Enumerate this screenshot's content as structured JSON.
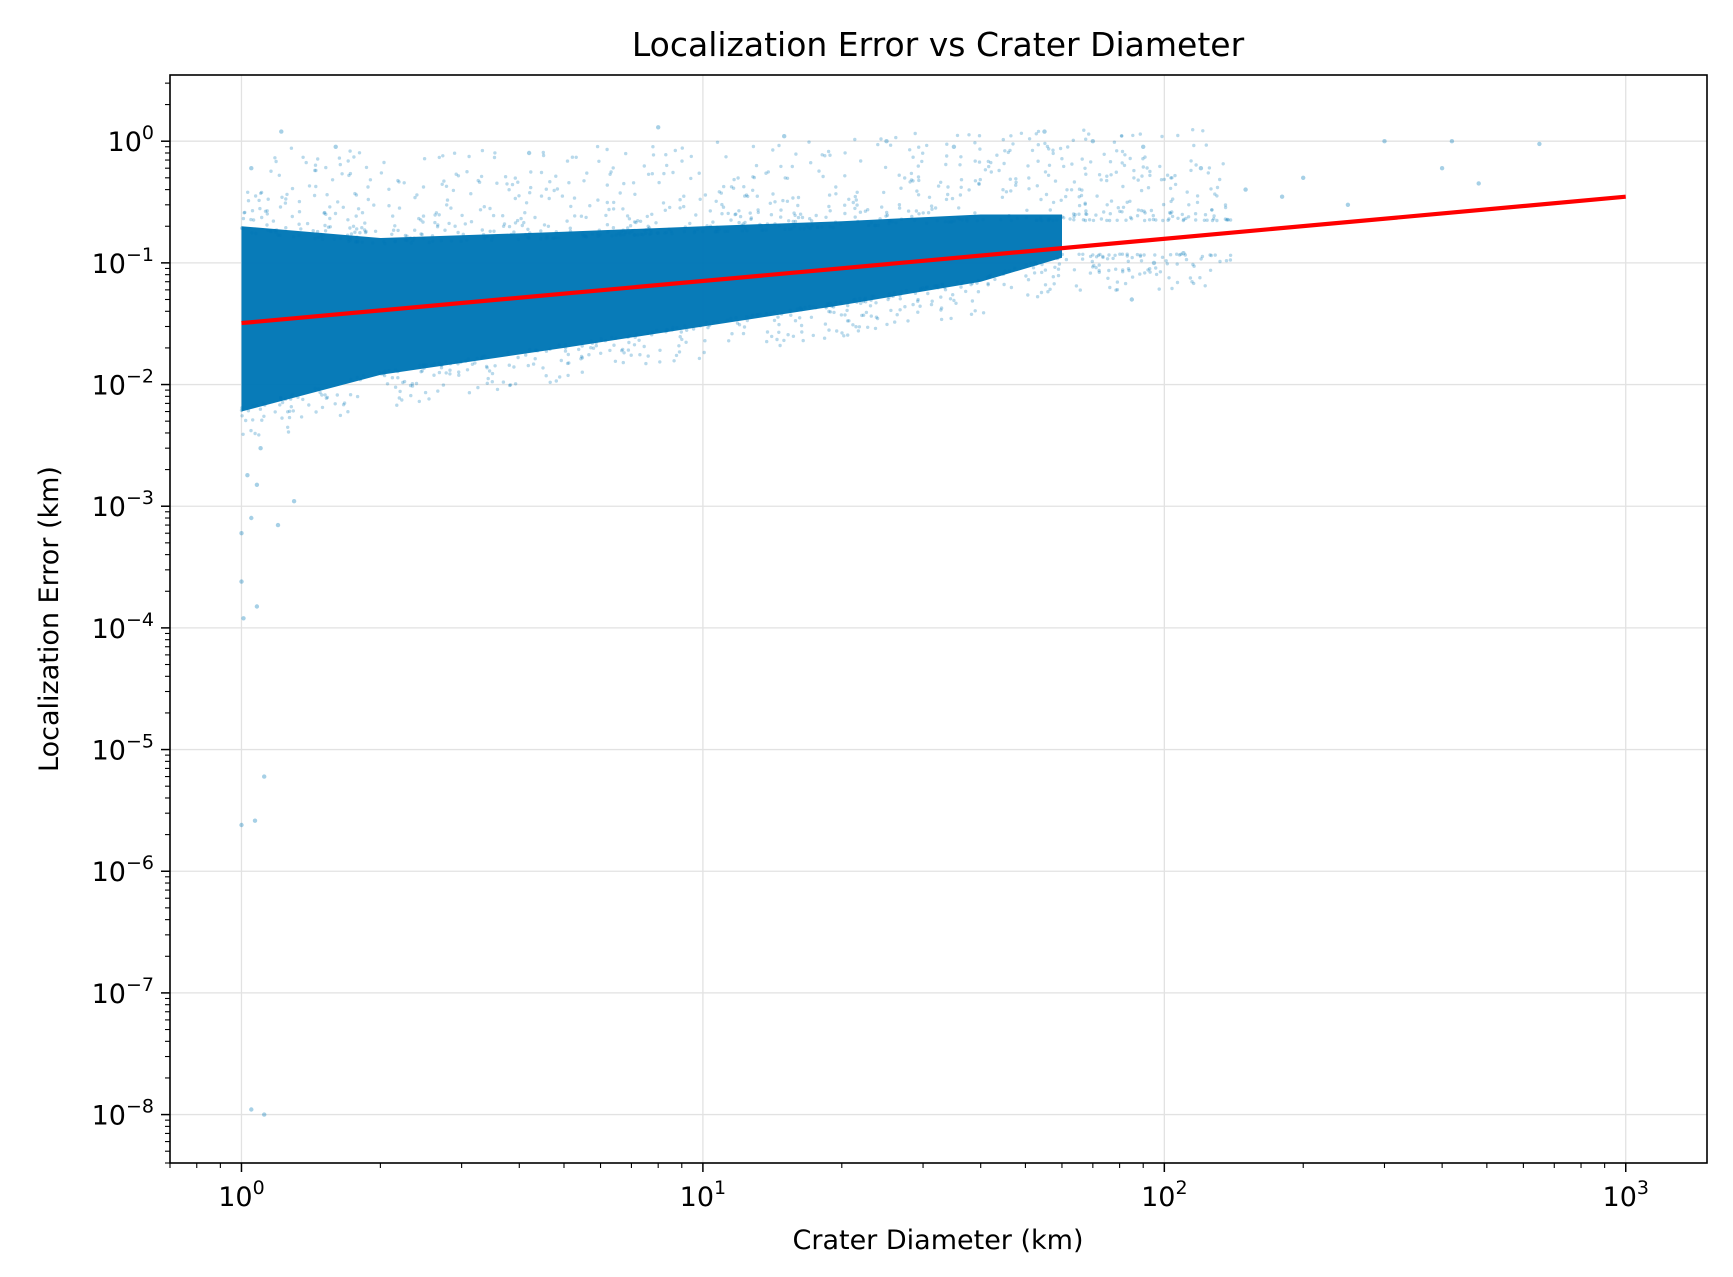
{
  "chart_data": {
    "type": "scatter",
    "title": "Localization Error vs Crater Diameter",
    "xlabel": "Crater Diameter (km)",
    "ylabel": "Localization Error (km)",
    "xscale": "log",
    "yscale": "log",
    "xlim": [
      0.7,
      1500
    ],
    "ylim": [
      4e-09,
      3.5
    ],
    "grid": true,
    "legend": "none",
    "x_ticks": [
      {
        "base": "10",
        "exp": "0",
        "value": 1
      },
      {
        "base": "10",
        "exp": "1",
        "value": 10
      },
      {
        "base": "10",
        "exp": "2",
        "value": 100
      },
      {
        "base": "10",
        "exp": "3",
        "value": 1000
      }
    ],
    "y_ticks": [
      {
        "base": "10",
        "exp": "0",
        "value": 1
      },
      {
        "base": "10",
        "exp": "−1",
        "value": 0.1
      },
      {
        "base": "10",
        "exp": "−2",
        "value": 0.01
      },
      {
        "base": "10",
        "exp": "−3",
        "value": 0.001
      },
      {
        "base": "10",
        "exp": "−4",
        "value": 0.0001
      },
      {
        "base": "10",
        "exp": "−5",
        "value": 1e-05
      },
      {
        "base": "10",
        "exp": "−6",
        "value": 1e-06
      },
      {
        "base": "10",
        "exp": "−7",
        "value": 1e-07
      },
      {
        "base": "10",
        "exp": "−8",
        "value": 1e-08
      }
    ],
    "series": [
      {
        "type": "scatter",
        "color": "#0077b6",
        "dense_band": [
          {
            "x": 1,
            "y_low": 0.006,
            "y_high": 0.2
          },
          {
            "x": 2,
            "y_low": 0.012,
            "y_high": 0.16
          },
          {
            "x": 5,
            "y_low": 0.02,
            "y_high": 0.18
          },
          {
            "x": 10,
            "y_low": 0.03,
            "y_high": 0.2
          },
          {
            "x": 20,
            "y_low": 0.045,
            "y_high": 0.22
          },
          {
            "x": 40,
            "y_low": 0.07,
            "y_high": 0.25
          },
          {
            "x": 60,
            "y_low": 0.11,
            "y_high": 0.25
          }
        ],
        "points": [
          {
            "x": 1.0,
            "y": 0.0006
          },
          {
            "x": 1.0,
            "y": 0.00024
          },
          {
            "x": 1.01,
            "y": 0.00012
          },
          {
            "x": 1.03,
            "y": 0.0018
          },
          {
            "x": 1.05,
            "y": 0.0008
          },
          {
            "x": 1.08,
            "y": 0.0015
          },
          {
            "x": 1.1,
            "y": 0.003
          },
          {
            "x": 1.2,
            "y": 0.0007
          },
          {
            "x": 1.3,
            "y": 0.0011
          },
          {
            "x": 1.08,
            "y": 0.00015
          },
          {
            "x": 1.12,
            "y": 6e-06
          },
          {
            "x": 1.0,
            "y": 2.4e-06
          },
          {
            "x": 1.07,
            "y": 2.6e-06
          },
          {
            "x": 1.05,
            "y": 1.1e-08
          },
          {
            "x": 1.12,
            "y": 1e-08
          },
          {
            "x": 1.22,
            "y": 1.2
          },
          {
            "x": 1.05,
            "y": 0.6
          },
          {
            "x": 1.6,
            "y": 0.9
          },
          {
            "x": 4.2,
            "y": 0.8
          },
          {
            "x": 8,
            "y": 1.3
          },
          {
            "x": 15,
            "y": 1.1
          },
          {
            "x": 25,
            "y": 1.0
          },
          {
            "x": 35,
            "y": 0.9
          },
          {
            "x": 55,
            "y": 1.2
          },
          {
            "x": 70,
            "y": 1.0
          },
          {
            "x": 90,
            "y": 0.9
          },
          {
            "x": 120,
            "y": 0.6
          },
          {
            "x": 150,
            "y": 0.4
          },
          {
            "x": 180,
            "y": 0.35
          },
          {
            "x": 200,
            "y": 0.5
          },
          {
            "x": 250,
            "y": 0.3
          },
          {
            "x": 300,
            "y": 1.0
          },
          {
            "x": 400,
            "y": 0.6
          },
          {
            "x": 420,
            "y": 1.0
          },
          {
            "x": 480,
            "y": 0.45
          },
          {
            "x": 650,
            "y": 0.95
          },
          {
            "x": 95,
            "y": 0.1
          },
          {
            "x": 110,
            "y": 0.12
          },
          {
            "x": 85,
            "y": 0.05
          }
        ]
      },
      {
        "type": "line",
        "color": "#ff0000",
        "x": [
          1,
          1000
        ],
        "y": [
          0.032,
          0.35
        ]
      }
    ]
  }
}
